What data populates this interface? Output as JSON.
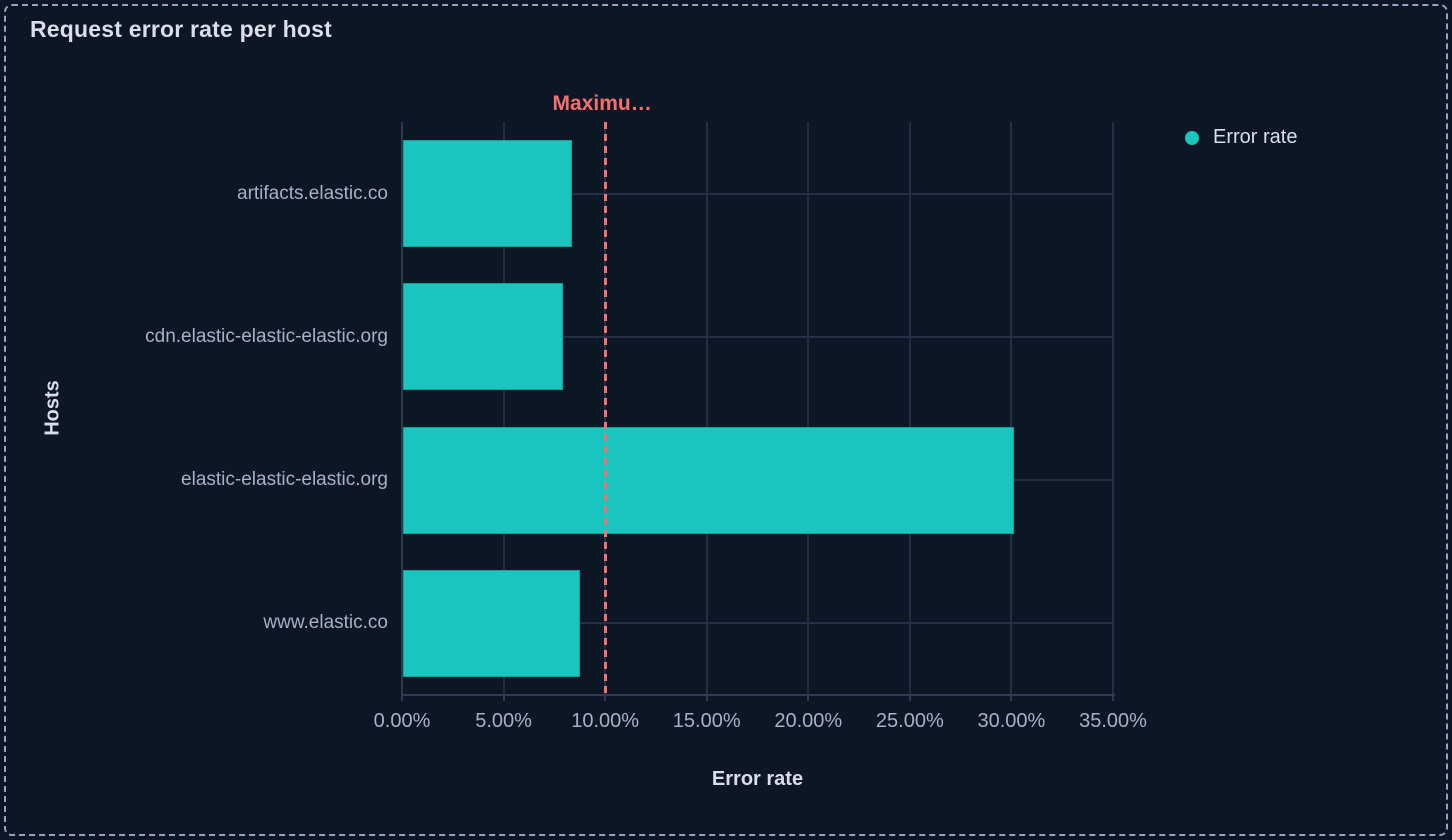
{
  "panel": {
    "title": "Request error rate per host"
  },
  "legend": {
    "items": [
      {
        "label": "Error rate",
        "color": "#19c5be"
      }
    ]
  },
  "chart_data": {
    "type": "bar",
    "orientation": "horizontal",
    "title": "Request error rate per host",
    "xlabel": "Error rate",
    "ylabel": "Hosts",
    "categories": [
      "artifacts.elastic.co",
      "cdn.elastic-elastic-elastic.org",
      "elastic-elastic-elastic.org",
      "www.elastic.co"
    ],
    "series": [
      {
        "name": "Error rate",
        "values": [
          8.3,
          7.9,
          30.1,
          8.7
        ],
        "unit": "%",
        "color": "#19c5be"
      }
    ],
    "xlim": [
      0,
      35
    ],
    "xticks": [
      0,
      5,
      10,
      15,
      20,
      25,
      30,
      35
    ],
    "xtick_labels": [
      "0.00%",
      "5.00%",
      "10.00%",
      "15.00%",
      "20.00%",
      "25.00%",
      "30.00%",
      "35.00%"
    ],
    "grid": true,
    "legend_position": "right",
    "reference_line": {
      "value": 10,
      "label": "Maximu…",
      "color": "#f3716c",
      "style": "dashed"
    }
  },
  "colors": {
    "background": "#0d1625",
    "bar": "#19c5be",
    "grid": "#242f45",
    "axis": "#2f3b54",
    "text_dim": "#a7b1c4",
    "text_bright": "#d8dfe9",
    "reference": "#f3716c",
    "panel_border": "#93a3c0"
  }
}
